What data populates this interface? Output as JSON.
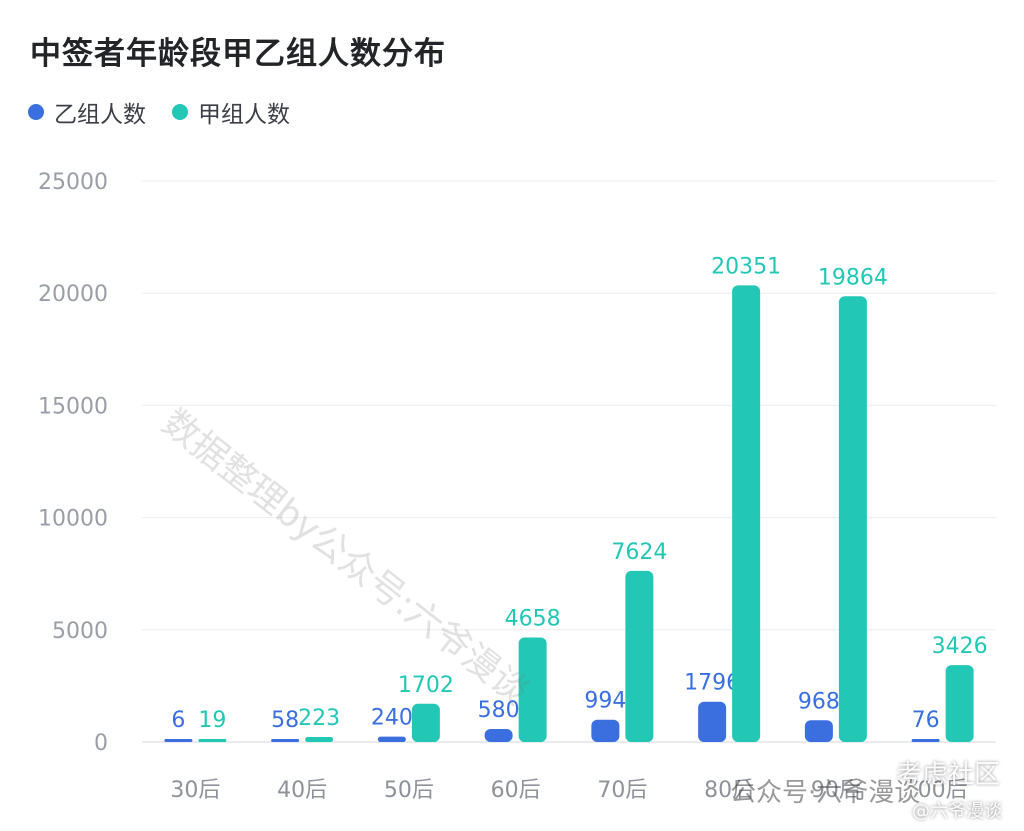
{
  "chart_data": {
    "type": "bar",
    "title": "中签者年龄段甲乙组人数分布",
    "categories": [
      "30后",
      "40后",
      "50后",
      "60后",
      "70后",
      "80后",
      "90后",
      "00后"
    ],
    "series": [
      {
        "name": "乙组人数",
        "color": "#3b6fe0",
        "values": [
          6,
          58,
          240,
          580,
          994,
          1796,
          968,
          76
        ]
      },
      {
        "name": "甲组人数",
        "color": "#22c7b5",
        "values": [
          19,
          223,
          1702,
          4658,
          7624,
          20351,
          19864,
          3426
        ]
      }
    ],
    "ylim": [
      0,
      25000
    ],
    "yticks": [
      0,
      5000,
      10000,
      15000,
      20000,
      25000
    ],
    "grid": true,
    "legend": "top-left",
    "xlabel": "",
    "ylabel": ""
  },
  "watermarks": {
    "main": "数据整理by公众号:六爷漫谈",
    "account": "公众号·六爷漫谈",
    "community": "考虑社区",
    "handle": "@六爷漫谈"
  }
}
